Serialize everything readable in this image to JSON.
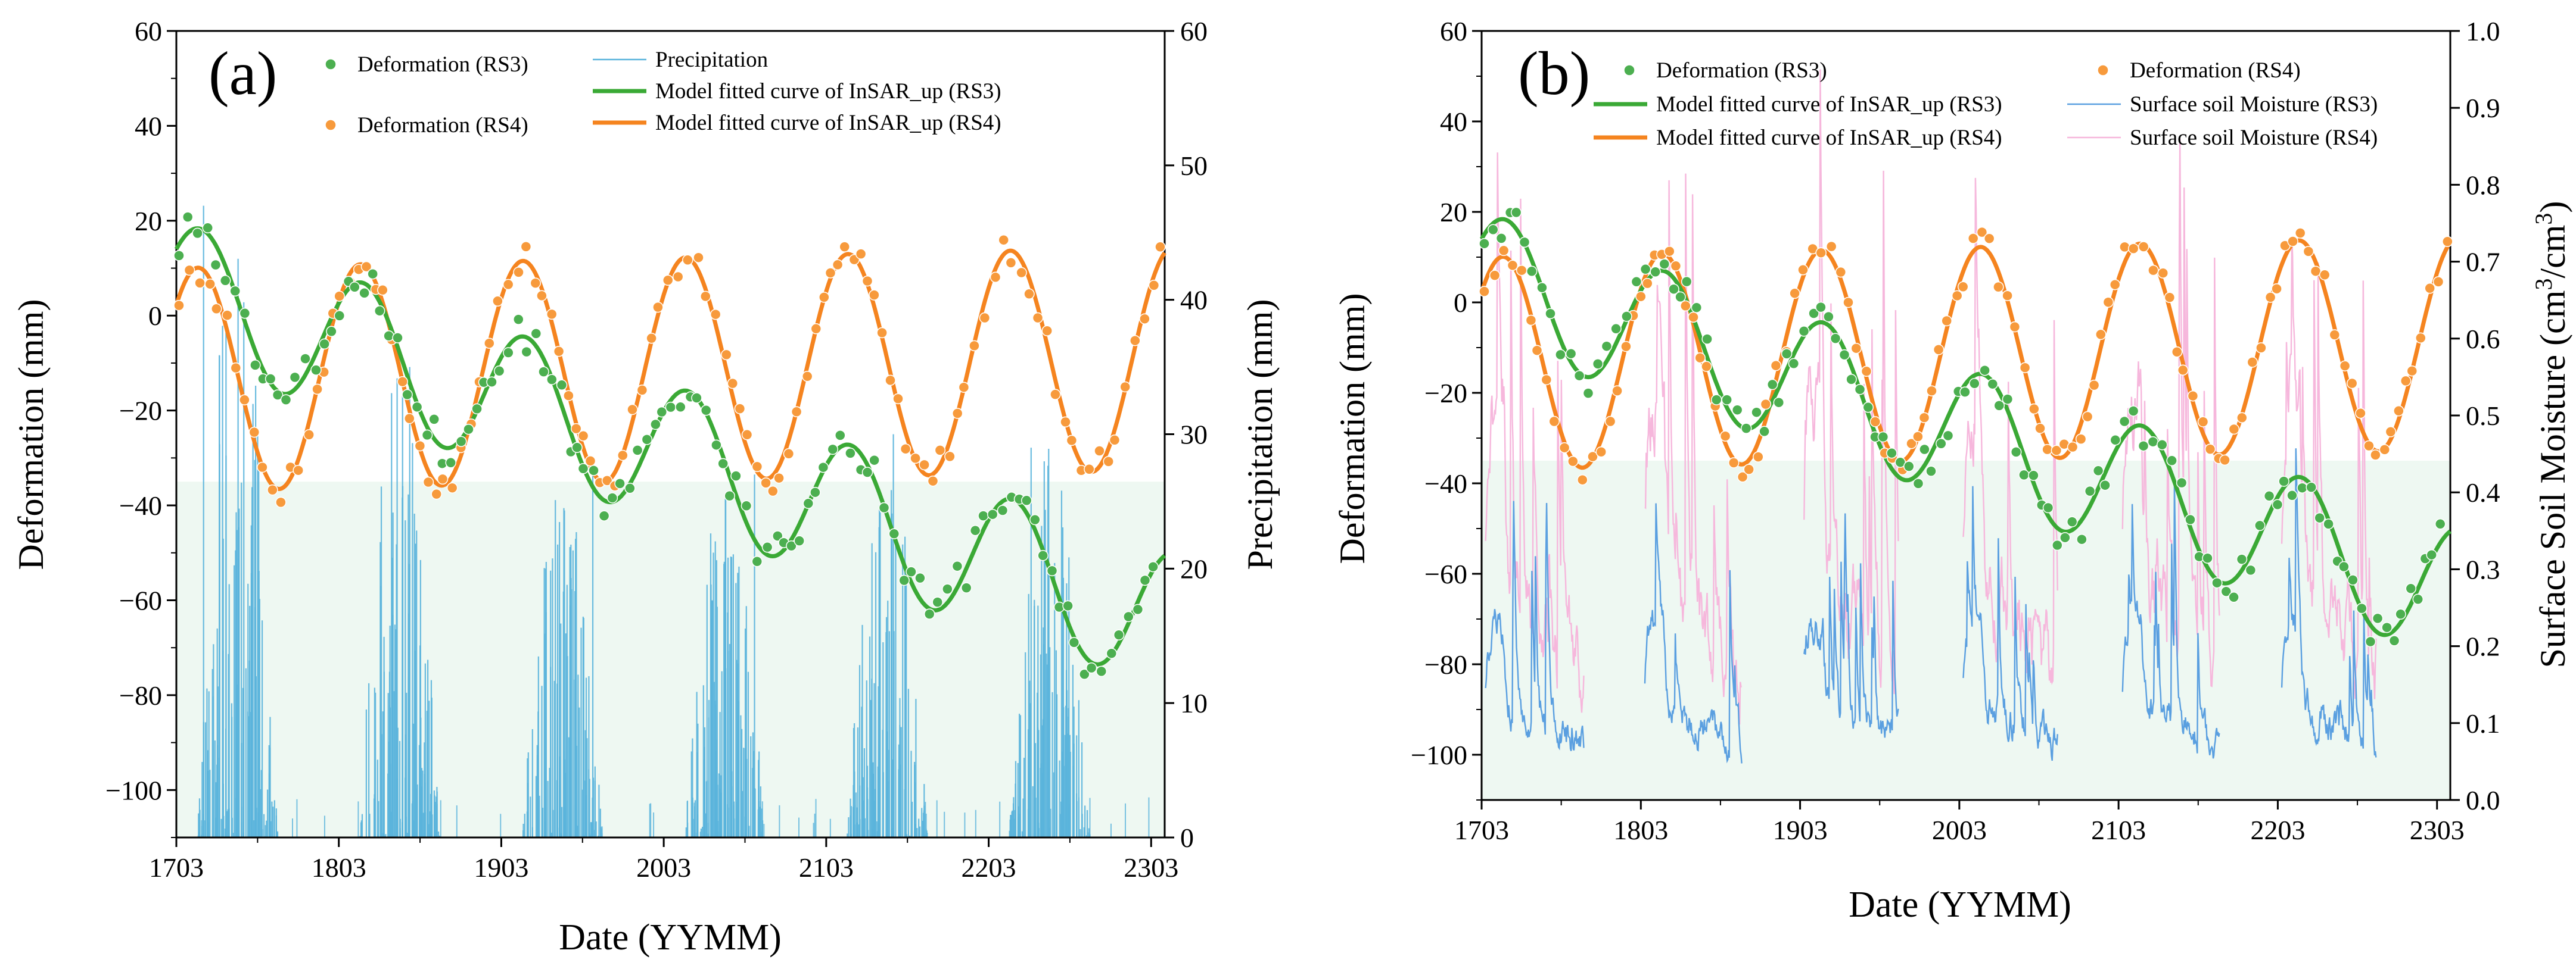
{
  "figure": {
    "colors": {
      "rs3": "#3aa935",
      "rs3_marker": "#4caf50",
      "rs4": "#f5841f",
      "rs4_marker": "#f79a3c",
      "precip": "#5ab4dc",
      "sm_rs3": "#5a9fe0",
      "sm_rs4": "#f6b7dc",
      "band": "#e8f6ee"
    }
  },
  "chart_data": [
    {
      "id": "a",
      "type": "scatter+line+bar",
      "panel_label": "(a)",
      "xlabel": "Date (YYMM)",
      "ylabel_left": "Deformation (mm)",
      "ylabel_right": "Precipitation (mm)",
      "xticks": [
        "1703",
        "1803",
        "1903",
        "2003",
        "2103",
        "2203",
        "2303"
      ],
      "xlim": [
        0,
        73
      ],
      "ylim_left": [
        -110,
        60
      ],
      "yticks_left": [
        "60",
        "40",
        "20",
        "0",
        "−20",
        "−40",
        "−60",
        "−80",
        "−100"
      ],
      "ytick_values_left": [
        60,
        40,
        20,
        0,
        -20,
        -40,
        -60,
        -80,
        -100
      ],
      "ylim_right": [
        0,
        60
      ],
      "yticks_right": [
        "60",
        "50",
        "40",
        "30",
        "20",
        "10",
        "0"
      ],
      "ytick_values_right": [
        60,
        50,
        40,
        30,
        20,
        10,
        0
      ],
      "legend": [
        {
          "label": "Deformation (RS3)",
          "kind": "dot",
          "color": "rs3_marker"
        },
        {
          "label": "Precipitation",
          "kind": "thin",
          "color": "precip"
        },
        {
          "label": "Model fitted curve of InSAR_up (RS3)",
          "kind": "line",
          "color": "rs3"
        },
        {
          "label": "Deformation (RS4)",
          "kind": "dot",
          "color": "rs4_marker"
        },
        {
          "label": "Model fitted curve of InSAR_up (RS4)",
          "kind": "line",
          "color": "rs4"
        }
      ],
      "series": [
        {
          "name": "Model fitted curve of InSAR_up (RS3)",
          "model": {
            "a": 5.5,
            "v": -0.95,
            "A": 14.5,
            "peak_month": 1.8
          }
        },
        {
          "name": "Model fitted curve of InSAR_up (RS4)",
          "model": {
            "a": -13.5,
            "v": 0.06,
            "A": 23.5,
            "peak_month": 1.6
          }
        },
        {
          "name": "Deformation (RS3)",
          "model": {
            "a": 5.5,
            "v": -0.95,
            "A": 14.5,
            "peak_month": 1.8
          },
          "noise": 4.5
        },
        {
          "name": "Deformation (RS4)",
          "model": {
            "a": -13.5,
            "v": 0.06,
            "A": 23.5,
            "peak_month": 1.6
          },
          "noise": 3.5
        },
        {
          "name": "Precipitation",
          "unit": "mm",
          "wet_seasons": [
            [
              1.5,
              7.5
            ],
            [
              13.5,
              19.5
            ],
            [
              25.5,
              31.5
            ],
            [
              37.5,
              43.5
            ],
            [
              49.5,
              55.5
            ],
            [
              61.5,
              67.5
            ]
          ],
          "peak_values": [
            47,
            35,
            27,
            27,
            30,
            29
          ],
          "bars_per_month": 9
        }
      ]
    },
    {
      "id": "b",
      "type": "scatter+line",
      "panel_label": "(b)",
      "xlabel": "Date (YYMM)",
      "ylabel_left": "Deformation (mm)",
      "ylabel_right": "Surface Soil Moisture (cm³/cm³)",
      "ylabel_right_base": "Surface Soil Moisture (cm",
      "ylabel_right_sup1": "3",
      "ylabel_right_mid": "/cm",
      "ylabel_right_sup2": "3",
      "ylabel_right_end": ")",
      "xticks": [
        "1703",
        "1803",
        "1903",
        "2003",
        "2103",
        "2203",
        "2303"
      ],
      "xlim": [
        0,
        73
      ],
      "ylim_left": [
        -110,
        60
      ],
      "yticks_left": [
        "60",
        "40",
        "20",
        "0",
        "−20",
        "−40",
        "−60",
        "−80",
        "−100"
      ],
      "ytick_values_left": [
        60,
        40,
        20,
        0,
        -20,
        -40,
        -60,
        -80,
        -100
      ],
      "ylim_right": [
        0,
        1
      ],
      "yticks_right": [
        "1.0",
        "0.9",
        "0.8",
        "0.7",
        "0.6",
        "0.5",
        "0.4",
        "0.3",
        "0.2",
        "0.1",
        "0.0"
      ],
      "ytick_values_right": [
        1.0,
        0.9,
        0.8,
        0.7,
        0.6,
        0.5,
        0.4,
        0.3,
        0.2,
        0.1,
        0.0
      ],
      "legend": [
        {
          "label": "Deformation (RS3)",
          "kind": "dot",
          "color": "rs3_marker"
        },
        {
          "label": "Deformation (RS4)",
          "kind": "dot",
          "color": "rs4_marker"
        },
        {
          "label": "Model fitted curve of InSAR_up (RS3)",
          "kind": "line",
          "color": "rs3"
        },
        {
          "label": "Surface soil Moisture (RS3)",
          "kind": "thin",
          "color": "sm_rs3"
        },
        {
          "label": "Model fitted curve of InSAR_up (RS4)",
          "kind": "line",
          "color": "rs4"
        },
        {
          "label": "Surface soil Moisture (RS4)",
          "kind": "thin",
          "color": "sm_rs4"
        }
      ],
      "series": [
        {
          "name": "Model fitted curve of InSAR_up (RS3)",
          "model": {
            "a": 5.5,
            "v": -0.95,
            "A": 14.5,
            "peak_month": 1.8
          }
        },
        {
          "name": "Model fitted curve of InSAR_up (RS4)",
          "model": {
            "a": -13.5,
            "v": 0.06,
            "A": 23.5,
            "peak_month": 1.6
          }
        },
        {
          "name": "Deformation (RS3)",
          "model": {
            "a": 5.5,
            "v": -0.95,
            "A": 14.5,
            "peak_month": 1.8
          },
          "noise": 4.5
        },
        {
          "name": "Deformation (RS4)",
          "model": {
            "a": -13.5,
            "v": 0.06,
            "A": 23.5,
            "peak_month": 1.6
          },
          "noise": 3.5
        },
        {
          "name": "Surface soil Moisture (RS3)",
          "unit": "cm3/cm3",
          "segments": [
            [
              0.3,
              7.7
            ],
            [
              12.3,
              19.6
            ],
            [
              24.3,
              31.4
            ],
            [
              36.3,
              43.4
            ],
            [
              48.3,
              55.6
            ],
            [
              60.3,
              67.4
            ]
          ],
          "baseline": 0.13,
          "spike": 0.24
        },
        {
          "name": "Surface soil Moisture (RS4)",
          "unit": "cm3/cm3",
          "segments": [
            [
              0.3,
              7.7
            ],
            [
              12.3,
              19.6
            ],
            [
              24.3,
              31.4
            ],
            [
              36.3,
              43.4
            ],
            [
              48.3,
              55.6
            ],
            [
              60.3,
              67.4
            ]
          ],
          "baseline": 0.3,
          "spike": 0.56
        }
      ]
    }
  ]
}
